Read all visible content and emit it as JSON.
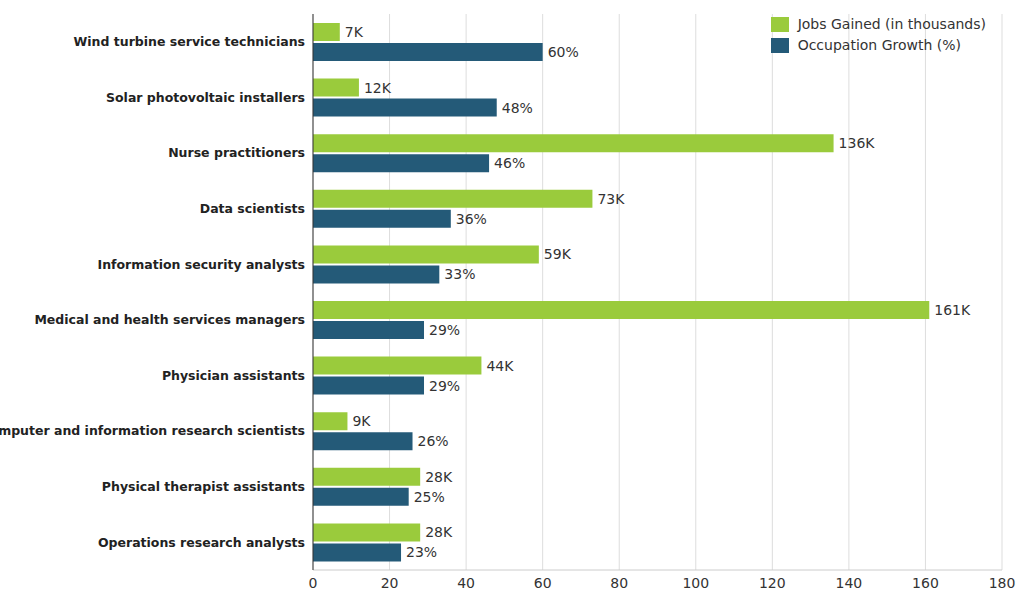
{
  "chart_data": {
    "type": "bar",
    "orientation": "horizontal",
    "categories": [
      "Wind turbine service technicians",
      "Solar photovoltaic installers",
      "Nurse practitioners",
      "Data scientists",
      "Information security analysts",
      "Medical and health services managers",
      "Physician assistants",
      "Computer and information research scientists",
      "Physical therapist assistants",
      "Operations research analysts"
    ],
    "series": [
      {
        "name": "Jobs Gained (in thousands)",
        "color": "#9acb3c",
        "values": [
          7,
          12,
          136,
          73,
          59,
          161,
          44,
          9,
          28,
          28
        ],
        "value_labels": [
          "7K",
          "12K",
          "136K",
          "73K",
          "59K",
          "161K",
          "44K",
          "9K",
          "28K",
          "28K"
        ]
      },
      {
        "name": "Occupation Growth (%)",
        "color": "#245a78",
        "values": [
          60,
          48,
          46,
          36,
          33,
          29,
          29,
          26,
          25,
          23
        ],
        "value_labels": [
          "60%",
          "48%",
          "46%",
          "36%",
          "33%",
          "29%",
          "29%",
          "26%",
          "25%",
          "23%"
        ]
      }
    ],
    "xlim": [
      0,
      180
    ],
    "xticks": [
      0,
      20,
      40,
      60,
      80,
      100,
      120,
      140,
      160,
      180
    ],
    "grid": true,
    "legend": "upper right",
    "data_labels": true
  }
}
